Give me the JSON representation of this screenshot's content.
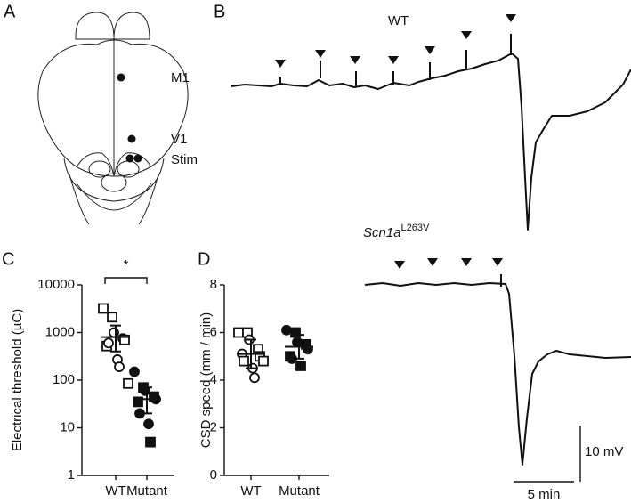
{
  "panels": {
    "a": {
      "label": "A",
      "regions": [
        "M1",
        "V1",
        "Stim"
      ]
    },
    "b": {
      "label": "B",
      "wt": "WT",
      "mutant_gene": "Scn1a",
      "mutant_allele": "L263V",
      "scale_y": "10 mV",
      "scale_x": "5 min"
    },
    "c": {
      "label": "C"
    },
    "d": {
      "label": "D"
    }
  },
  "chart_data": [
    {
      "type": "scatter",
      "y_label": "Electrical threshold (µC)",
      "log_scale": true,
      "categories": [
        "WT",
        "Mutant"
      ],
      "ylim": [
        1,
        10000
      ],
      "yticks": [
        1,
        10,
        100,
        1000,
        10000
      ],
      "annotation": "*",
      "series": [
        {
          "color": "#111111",
          "filled": false,
          "values": [
            3200,
            2100,
            1000,
            750,
            700,
            520,
            600,
            270,
            190,
            85
          ],
          "markers": [
            "square",
            "square",
            "circle",
            "circle",
            "square",
            "square",
            "circle",
            "circle",
            "circle",
            "square"
          ]
        },
        {
          "color": "#111111",
          "filled": true,
          "values": [
            150,
            70,
            60,
            45,
            40,
            35,
            20,
            12,
            5
          ],
          "markers": [
            "circle",
            "square",
            "circle",
            "square",
            "circle",
            "square",
            "circle",
            "circle",
            "square"
          ]
        }
      ],
      "means": [
        800,
        40
      ],
      "whiskers": [
        [
          400,
          1400
        ],
        [
          20,
          70
        ]
      ]
    },
    {
      "type": "scatter",
      "y_label": "CSD speed (mm / min)",
      "log_scale": false,
      "categories": [
        "WT",
        "Mutant"
      ],
      "ylim": [
        0,
        8
      ],
      "yticks": [
        0,
        2,
        4,
        6,
        8
      ],
      "series": [
        {
          "color": "#111111",
          "filled": false,
          "values": [
            6.0,
            6.0,
            5.7,
            5.3,
            5.0,
            5.1,
            4.8,
            4.5,
            4.1,
            4.8
          ],
          "markers": [
            "square",
            "square",
            "circle",
            "square",
            "square",
            "circle",
            "square",
            "circle",
            "circle",
            "square"
          ]
        },
        {
          "color": "#111111",
          "filled": true,
          "values": [
            6.1,
            6.0,
            5.6,
            5.5,
            5.3,
            5.0,
            4.9,
            4.6
          ],
          "markers": [
            "circle",
            "square",
            "circle",
            "square",
            "circle",
            "square",
            "circle",
            "square"
          ]
        }
      ],
      "means": [
        5.1,
        5.4
      ],
      "whiskers": [
        [
          4.5,
          5.7
        ],
        [
          4.9,
          5.9
        ]
      ]
    }
  ]
}
